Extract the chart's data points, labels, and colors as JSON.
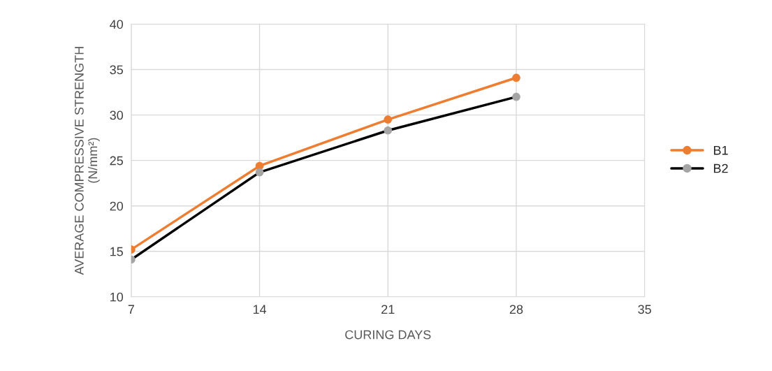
{
  "chart_data": {
    "type": "line",
    "xlabel": "CURING DAYS",
    "ylabel": "AVERAGE COMPRESSIVE STRENGTH\n(N/mm²)",
    "x": [
      7,
      14,
      21,
      28
    ],
    "series": [
      {
        "name": "B1",
        "color": "#ed7d31",
        "values": [
          15.2,
          24.4,
          29.5,
          34.1
        ]
      },
      {
        "name": "B2",
        "color": "#000000",
        "colors": [
          "#a5a5a5",
          "#a5a5a5",
          "#a5a5a5",
          "#a5a5a5"
        ],
        "values": [
          14.1,
          23.7,
          28.3,
          32.0
        ]
      }
    ],
    "xlim": [
      7,
      35
    ],
    "xticks": [
      7,
      14,
      21,
      28,
      35
    ],
    "ylim": [
      10,
      40
    ],
    "yticks": [
      10,
      15,
      20,
      25,
      30,
      35,
      40
    ],
    "grid": true,
    "legend": "right",
    "marker": "circle",
    "line_style": "solid"
  }
}
